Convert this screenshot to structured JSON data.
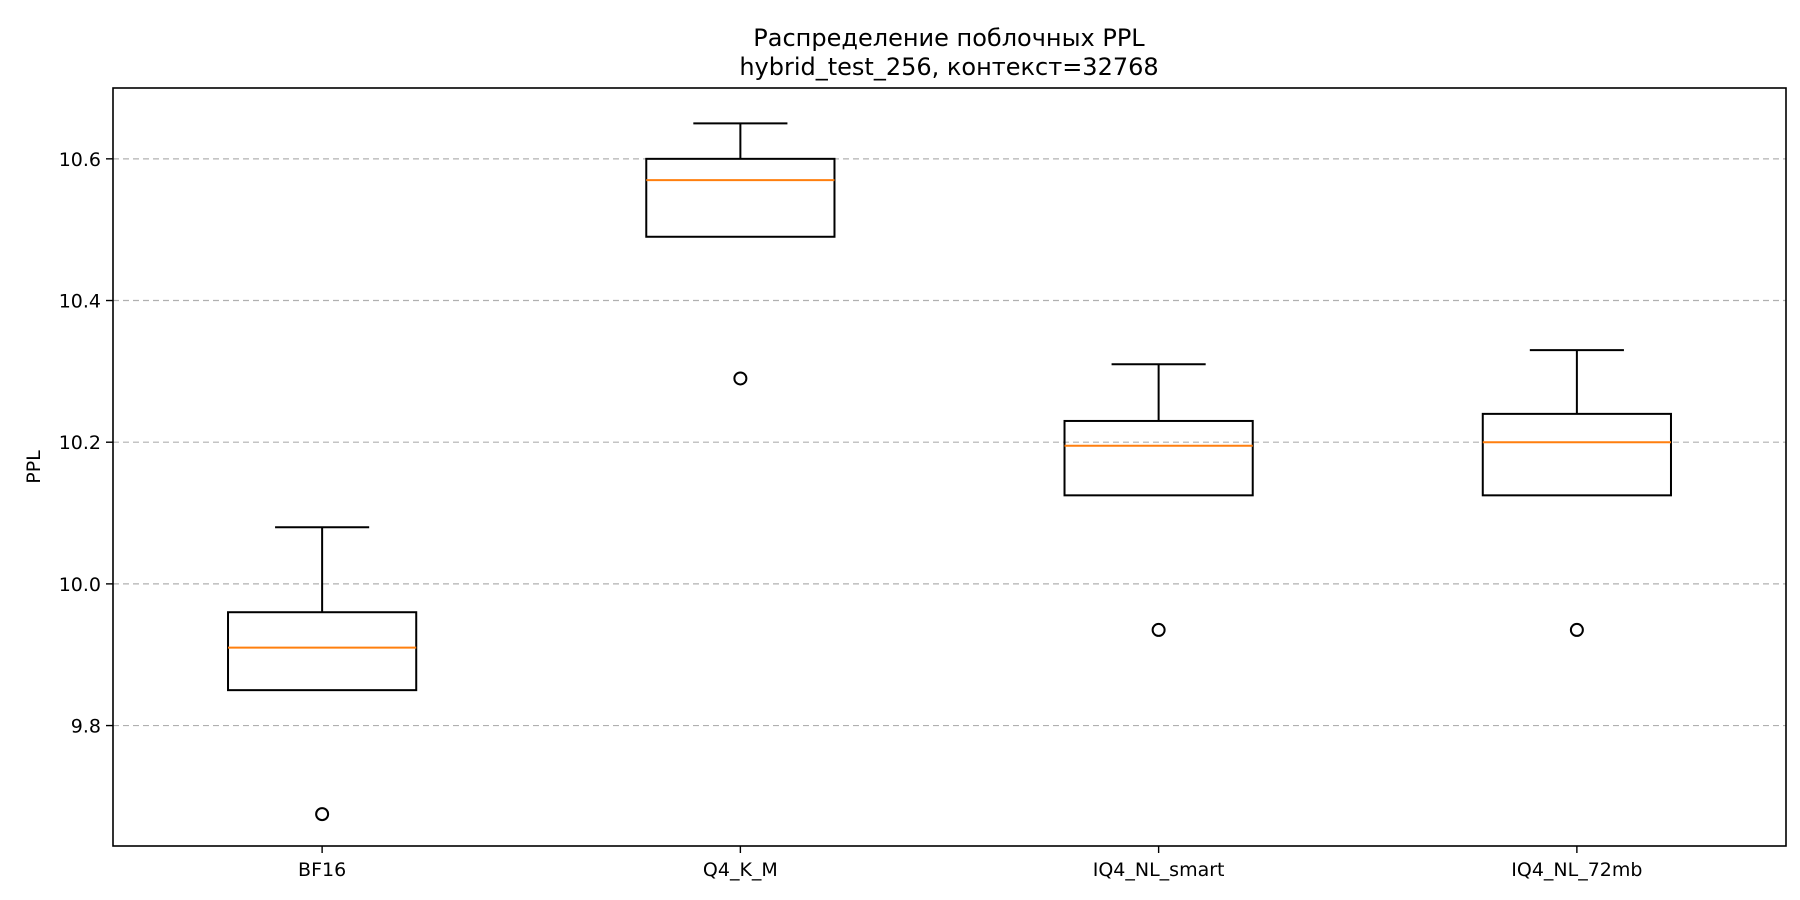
{
  "chart_data": {
    "type": "box",
    "title": "Распределение поблочных PPL",
    "subtitle": "hybrid_test_256, контекст=32768",
    "xlabel": "",
    "ylabel": "PPL",
    "ylim": [
      9.63,
      10.7
    ],
    "yticks": [
      9.8,
      10.0,
      10.2,
      10.4,
      10.6
    ],
    "ytick_labels": [
      "9.8",
      "10.0",
      "10.2",
      "10.4",
      "10.6"
    ],
    "grid": "y-dashed",
    "categories": [
      "BF16",
      "Q4_K_M",
      "IQ4_NL_smart",
      "IQ4_NL_72mb"
    ],
    "series": [
      {
        "whisker_low": 9.85,
        "q1": 9.85,
        "median": 9.91,
        "q3": 9.96,
        "whisker_high": 10.08,
        "outliers": [
          9.675
        ]
      },
      {
        "whisker_low": 10.49,
        "q1": 10.49,
        "median": 10.57,
        "q3": 10.6,
        "whisker_high": 10.65,
        "outliers": [
          10.29
        ]
      },
      {
        "whisker_low": 10.125,
        "q1": 10.125,
        "median": 10.195,
        "q3": 10.23,
        "whisker_high": 10.31,
        "outliers": [
          9.935
        ]
      },
      {
        "whisker_low": 10.125,
        "q1": 10.125,
        "median": 10.2,
        "q3": 10.24,
        "whisker_high": 10.33,
        "outliers": [
          9.935
        ]
      }
    ],
    "colors": {
      "median": "#ff7f0e",
      "box": "#000000",
      "grid": "#b0b0b0"
    }
  }
}
